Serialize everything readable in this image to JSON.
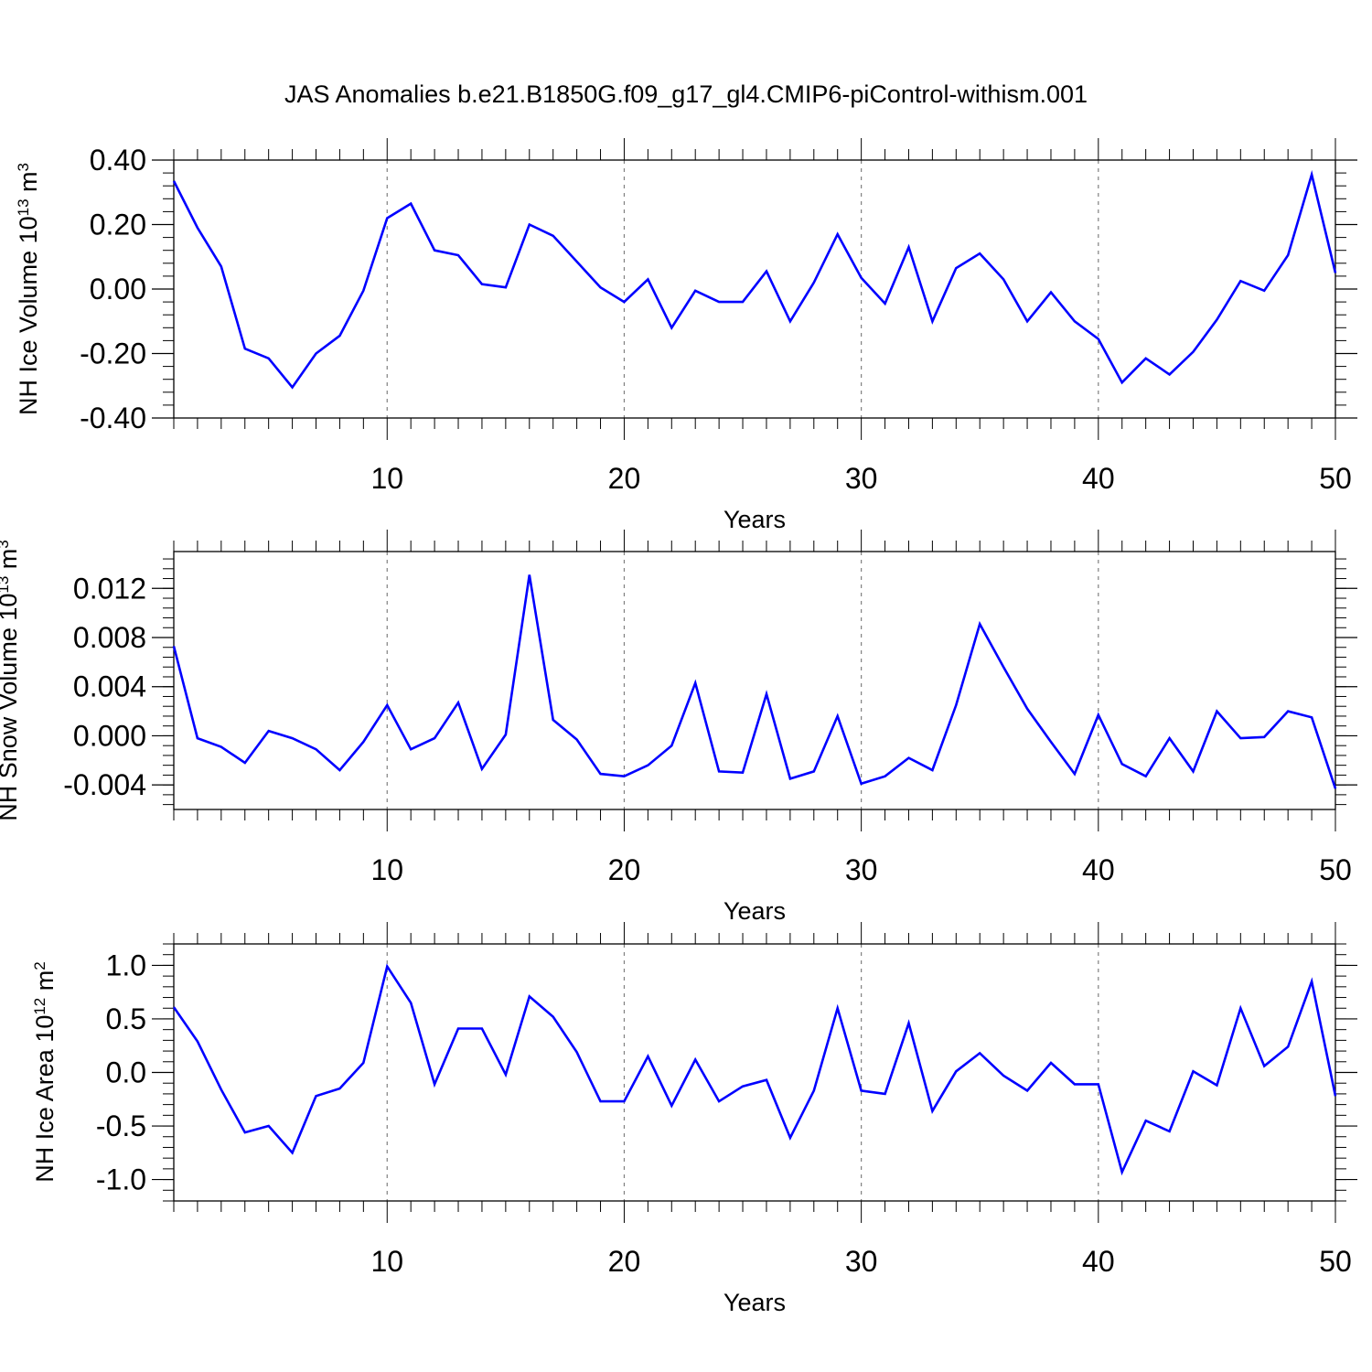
{
  "title": "JAS Anomalies b.e21.B1850G.f09_g17_gl4.CMIP6-piControl-withism.001",
  "colors": {
    "line": "#0000ff",
    "axis": "#000000",
    "grid": "#808080"
  },
  "chart_data": [
    {
      "type": "line",
      "ylabel_main": "NH Ice Volume 10",
      "ylabel_exp": "13",
      "ylabel_unit": " m",
      "ylabel_unit_exp": "3",
      "xlabel": "Years",
      "xlim": [
        1,
        50
      ],
      "ylim": [
        -0.4,
        0.4
      ],
      "yticks": [
        -0.4,
        -0.2,
        0.0,
        0.2,
        0.4
      ],
      "ytick_labels": [
        "-0.40",
        "-0.20",
        "0.00",
        "0.20",
        "0.40"
      ],
      "xticks": [
        10,
        20,
        30,
        40,
        50
      ],
      "xtick_labels": [
        "10",
        "20",
        "30",
        "40",
        "50"
      ],
      "grid": "vertical dashed at major x ticks",
      "x": [
        1,
        2,
        3,
        4,
        5,
        6,
        7,
        8,
        9,
        10,
        11,
        12,
        13,
        14,
        15,
        16,
        17,
        18,
        19,
        20,
        21,
        22,
        23,
        24,
        25,
        26,
        27,
        28,
        29,
        30,
        31,
        32,
        33,
        34,
        35,
        36,
        37,
        38,
        39,
        40,
        41,
        42,
        43,
        44,
        45,
        46,
        47,
        48,
        49,
        50
      ],
      "values": [
        0.335,
        0.19,
        0.07,
        -0.185,
        -0.215,
        -0.305,
        -0.2,
        -0.145,
        -0.005,
        0.22,
        0.265,
        0.12,
        0.105,
        0.015,
        0.005,
        0.2,
        0.165,
        0.085,
        0.005,
        -0.04,
        0.03,
        -0.12,
        -0.005,
        -0.04,
        -0.04,
        0.055,
        -0.1,
        0.02,
        0.17,
        0.035,
        -0.045,
        0.13,
        -0.1,
        0.065,
        0.11,
        0.03,
        -0.1,
        -0.01,
        -0.1,
        -0.155,
        -0.29,
        -0.215,
        -0.265,
        -0.195,
        -0.095,
        0.025,
        -0.005,
        0.105,
        0.355,
        0.05
      ]
    },
    {
      "type": "line",
      "ylabel_main": "NH Snow Volume 10",
      "ylabel_exp": "13",
      "ylabel_unit": " m",
      "ylabel_unit_exp": "3",
      "xlabel": "Years",
      "xlim": [
        1,
        50
      ],
      "ylim": [
        -0.006,
        0.015
      ],
      "yticks": [
        -0.004,
        0.0,
        0.004,
        0.008,
        0.012
      ],
      "ytick_labels": [
        "-0.004",
        "0.000",
        "0.004",
        "0.008",
        "0.012"
      ],
      "xticks": [
        10,
        20,
        30,
        40,
        50
      ],
      "xtick_labels": [
        "10",
        "20",
        "30",
        "40",
        "50"
      ],
      "grid": "vertical dashed at major x ticks",
      "x": [
        1,
        2,
        3,
        4,
        5,
        6,
        7,
        8,
        9,
        10,
        11,
        12,
        13,
        14,
        15,
        16,
        17,
        18,
        19,
        20,
        21,
        22,
        23,
        24,
        25,
        26,
        27,
        28,
        29,
        30,
        31,
        32,
        33,
        34,
        35,
        36,
        37,
        38,
        39,
        40,
        41,
        42,
        43,
        44,
        45,
        46,
        47,
        48,
        49,
        50
      ],
      "values": [
        0.0073,
        -0.0002,
        -0.0009,
        -0.0022,
        0.0004,
        -0.0002,
        -0.0011,
        -0.0028,
        -0.0005,
        0.0025,
        -0.0011,
        -0.0002,
        0.0027,
        -0.0027,
        0.0001,
        0.0131,
        0.0013,
        -0.0003,
        -0.0031,
        -0.0033,
        -0.0024,
        -0.0008,
        0.0043,
        -0.0029,
        -0.003,
        0.0034,
        -0.0035,
        -0.0029,
        0.0016,
        -0.0039,
        -0.0033,
        -0.0018,
        -0.0028,
        0.0025,
        0.0091,
        0.0056,
        0.0022,
        -0.0005,
        -0.0031,
        0.0017,
        -0.0023,
        -0.0033,
        -0.0002,
        -0.0029,
        0.002,
        -0.0002,
        -0.0001,
        0.002,
        0.0015,
        -0.0043
      ]
    },
    {
      "type": "line",
      "ylabel_main": "NH Ice Area 10",
      "ylabel_exp": "12",
      "ylabel_unit": " m",
      "ylabel_unit_exp": "2",
      "xlabel": "Years",
      "xlim": [
        1,
        50
      ],
      "ylim": [
        -1.2,
        1.2
      ],
      "yticks": [
        -1.0,
        -0.5,
        0.0,
        0.5,
        1.0
      ],
      "ytick_labels": [
        "-1.0",
        "-0.5",
        "0.0",
        "0.5",
        "1.0"
      ],
      "xticks": [
        10,
        20,
        30,
        40,
        50
      ],
      "xtick_labels": [
        "10",
        "20",
        "30",
        "40",
        "50"
      ],
      "grid": "vertical dashed at major x ticks",
      "x": [
        1,
        2,
        3,
        4,
        5,
        6,
        7,
        8,
        9,
        10,
        11,
        12,
        13,
        14,
        15,
        16,
        17,
        18,
        19,
        20,
        21,
        22,
        23,
        24,
        25,
        26,
        27,
        28,
        29,
        30,
        31,
        32,
        33,
        34,
        35,
        36,
        37,
        38,
        39,
        40,
        41,
        42,
        43,
        44,
        45,
        46,
        47,
        48,
        49,
        50
      ],
      "values": [
        0.61,
        0.29,
        -0.16,
        -0.56,
        -0.5,
        -0.75,
        -0.22,
        -0.15,
        0.09,
        0.99,
        0.65,
        -0.11,
        0.41,
        0.41,
        -0.02,
        0.71,
        0.52,
        0.19,
        -0.27,
        -0.27,
        0.15,
        -0.31,
        0.12,
        -0.27,
        -0.13,
        -0.07,
        -0.61,
        -0.17,
        0.6,
        -0.17,
        -0.2,
        0.46,
        -0.36,
        0.01,
        0.18,
        -0.03,
        -0.17,
        0.09,
        -0.11,
        -0.11,
        -0.93,
        -0.45,
        -0.55,
        0.01,
        -0.12,
        0.6,
        0.06,
        0.24,
        0.85,
        -0.22
      ]
    }
  ]
}
